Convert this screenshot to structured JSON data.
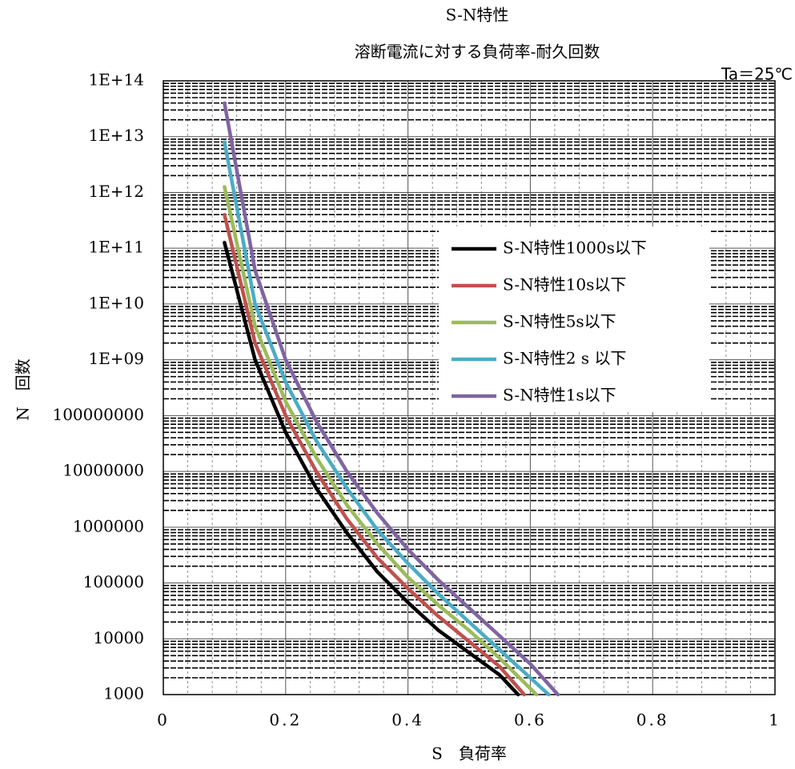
{
  "chart_data": {
    "type": "line",
    "title": "S-N特性",
    "subtitle": "溶断電流に対する負荷率-耐久回数",
    "annotation": "Ta＝25℃",
    "x_label": "S　負荷率",
    "y_label": "N　回数",
    "log_y": true,
    "grid": true,
    "legend": "upper right",
    "xlim": [
      0,
      1
    ],
    "xticks": [
      0,
      0.2,
      0.4,
      0.6,
      0.8,
      1
    ],
    "ylim": [
      1000,
      100000000000000.0
    ],
    "yticks": [
      1000,
      10000,
      100000,
      1000000,
      10000000,
      100000000,
      {
        "value": 1000000000.0,
        "label": "1E+09"
      },
      {
        "value": 10000000000.0,
        "label": "1E+10"
      },
      {
        "value": 100000000000.0,
        "label": "1E+11"
      },
      {
        "value": 1000000000000.0,
        "label": "1E+12"
      },
      {
        "value": 10000000000000.0,
        "label": "1E+13"
      },
      {
        "value": 100000000000000.0,
        "label": "1E+14"
      }
    ],
    "series": [
      {
        "name": "S-N特性1000s以下",
        "color": "#000000",
        "x": [
          0.1,
          0.15,
          0.2,
          0.25,
          0.3,
          0.35,
          0.4,
          0.45,
          0.5,
          0.55,
          0.58
        ],
        "values": [
          126000000000.0,
          1000000000.0,
          50100000.0,
          5010000.0,
          794000.0,
          158000.0,
          44700.0,
          14100.0,
          5620,
          2240,
          1000
        ]
      },
      {
        "name": "S-N特性10s以下",
        "color": "#c0504d",
        "x": [
          0.1,
          0.15,
          0.2,
          0.25,
          0.3,
          0.35,
          0.4,
          0.45,
          0.5,
          0.55,
          0.59
        ],
        "values": [
          398000000000.0,
          2000000000.0,
          100000000.0,
          10000000.0,
          1410000.0,
          282000.0,
          79400.0,
          25100.0,
          8910,
          3160,
          1000
        ]
      },
      {
        "name": "S-N特性5s以下",
        "color": "#9bbb59",
        "x": [
          0.1,
          0.15,
          0.2,
          0.25,
          0.3,
          0.35,
          0.4,
          0.45,
          0.5,
          0.55,
          0.61
        ],
        "values": [
          1260000000000.0,
          3980000000.0,
          178000000.0,
          17800000.0,
          2510000.0,
          501000.0,
          126000.0,
          39800.0,
          14100.0,
          4470,
          1000
        ]
      },
      {
        "name": "S-N特性2 s 以下",
        "color": "#4bacc6",
        "x": [
          0.1,
          0.15,
          0.2,
          0.25,
          0.3,
          0.35,
          0.4,
          0.45,
          0.5,
          0.55,
          0.6,
          0.63
        ],
        "values": [
          7940000000000.0,
          10000000000.0,
          398000000.0,
          35500000.0,
          5010000.0,
          891000.0,
          224000.0,
          63100.0,
          20000.0,
          6310,
          2000,
          1000
        ]
      },
      {
        "name": "S-N特性1s以下",
        "color": "#8064a2",
        "x": [
          0.1,
          0.15,
          0.2,
          0.25,
          0.3,
          0.35,
          0.4,
          0.45,
          0.5,
          0.55,
          0.6,
          0.645
        ],
        "values": [
          39800000000000.0,
          39800000000.0,
          1000000000.0,
          79400000.0,
          10000000.0,
          1780000.0,
          398000.0,
          112000.0,
          35500.0,
          11200.0,
          3550,
          1000
        ]
      }
    ]
  }
}
